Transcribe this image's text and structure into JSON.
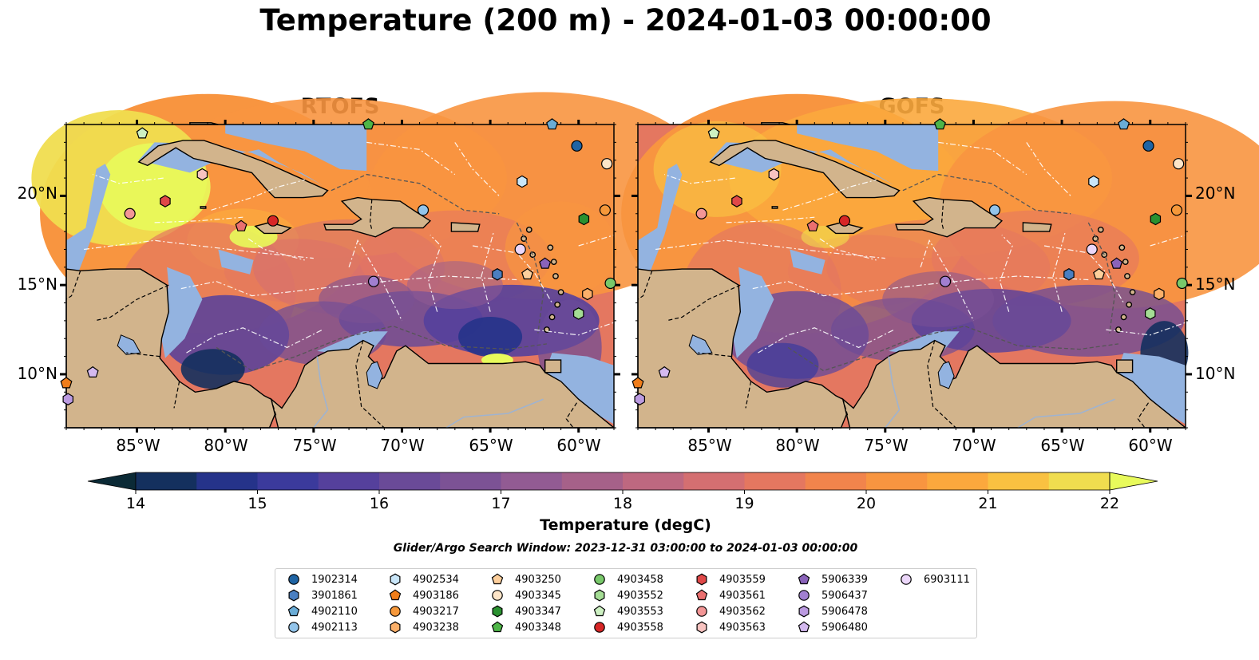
{
  "title": "Temperature (200 m) - 2024-01-03 00:00:00",
  "panels": [
    {
      "title": "RTOFS",
      "model": "rtofs"
    },
    {
      "title": "GOFS",
      "model": "gofs"
    }
  ],
  "axes": {
    "x_ticks": [
      "85°W",
      "80°W",
      "75°W",
      "70°W",
      "65°W",
      "60°W"
    ],
    "x_tick_values": [
      -85,
      -80,
      -75,
      -70,
      -65,
      -60
    ],
    "y_ticks": [
      "20°N",
      "15°N",
      "10°N"
    ],
    "y_tick_values": [
      20,
      15,
      10
    ],
    "lon_range": [
      -89,
      -58
    ],
    "lat_range": [
      7,
      24
    ]
  },
  "colorbar": {
    "label": "Temperature (degC)",
    "ticks": [
      "14",
      "15",
      "16",
      "17",
      "18",
      "19",
      "20",
      "21",
      "22"
    ],
    "tick_values": [
      14,
      15,
      16,
      17,
      18,
      19,
      20,
      21,
      22
    ],
    "range": [
      14,
      22
    ],
    "step": 0.5,
    "colormap": "thermal",
    "extend": "both",
    "colors": [
      "#0b2a36",
      "#14305e",
      "#25338a",
      "#3b3a9c",
      "#55409c",
      "#6a4a98",
      "#7c5295",
      "#925b93",
      "#a66189",
      "#be6880",
      "#d46f71",
      "#e47760",
      "#f1844c",
      "#f89540",
      "#fba83d",
      "#f9c141",
      "#f0dd4f",
      "#e8fa5b"
    ]
  },
  "search_window": "Glider/Argo Search Window: 2023-12-31 03:00:00 to 2024-01-03 00:00:00",
  "colors": {
    "land": "#d2b48c",
    "shelf": "#93b3e0",
    "contour_line": "#555555",
    "eez_line": "#ffffff"
  },
  "legend": [
    {
      "id": "1902314",
      "marker": "circle",
      "color": "#1f64a4"
    },
    {
      "id": "3901861",
      "marker": "hexagon",
      "color": "#4a7fc1"
    },
    {
      "id": "4902110",
      "marker": "pentagon",
      "color": "#6aacd6"
    },
    {
      "id": "4902113",
      "marker": "circle",
      "color": "#93c4ea"
    },
    {
      "id": "4902534",
      "marker": "hexagon",
      "color": "#c9e6f9"
    },
    {
      "id": "4903186",
      "marker": "pentagon",
      "color": "#f07d1a"
    },
    {
      "id": "4903217",
      "marker": "circle",
      "color": "#f6983a"
    },
    {
      "id": "4903238",
      "marker": "hexagon",
      "color": "#fbb06a"
    },
    {
      "id": "4903250",
      "marker": "pentagon",
      "color": "#fdcf9c"
    },
    {
      "id": "4903345",
      "marker": "circle",
      "color": "#fde5c8"
    },
    {
      "id": "4903347",
      "marker": "hexagon",
      "color": "#2a9130"
    },
    {
      "id": "4903348",
      "marker": "pentagon",
      "color": "#4eb548"
    },
    {
      "id": "4903458",
      "marker": "circle",
      "color": "#78c86a"
    },
    {
      "id": "4903552",
      "marker": "hexagon",
      "color": "#a4dc94"
    },
    {
      "id": "4903553",
      "marker": "pentagon",
      "color": "#cdf0c2"
    },
    {
      "id": "4903558",
      "marker": "circle",
      "color": "#d72626"
    },
    {
      "id": "4903559",
      "marker": "hexagon",
      "color": "#e04848"
    },
    {
      "id": "4903561",
      "marker": "pentagon",
      "color": "#ea6f6f"
    },
    {
      "id": "4903562",
      "marker": "circle",
      "color": "#f39696"
    },
    {
      "id": "4903563",
      "marker": "hexagon",
      "color": "#f8c3c0"
    },
    {
      "id": "5906339",
      "marker": "pentagon",
      "color": "#8a63ba"
    },
    {
      "id": "5906437",
      "marker": "circle",
      "color": "#a17fd0"
    },
    {
      "id": "5906478",
      "marker": "hexagon",
      "color": "#bb9ae0"
    },
    {
      "id": "5906480",
      "marker": "pentagon",
      "color": "#d4b9ef"
    },
    {
      "id": "6903111",
      "marker": "circle",
      "color": "#ecd7fa"
    }
  ],
  "floats": [
    {
      "id": "1902314",
      "lon": -60.1,
      "lat": 22.8
    },
    {
      "id": "3901861",
      "lon": -64.6,
      "lat": 15.6
    },
    {
      "id": "4902110",
      "lon": -61.5,
      "lat": 24.0
    },
    {
      "id": "4902113",
      "lon": -68.8,
      "lat": 19.2
    },
    {
      "id": "4902534",
      "lon": -63.2,
      "lat": 20.8
    },
    {
      "id": "4903186",
      "lon": -89.0,
      "lat": 9.5
    },
    {
      "id": "4903217",
      "lon": -58.5,
      "lat": 19.2
    },
    {
      "id": "4903238",
      "lon": -59.5,
      "lat": 14.5
    },
    {
      "id": "4903250",
      "lon": -62.9,
      "lat": 15.6
    },
    {
      "id": "4903345",
      "lon": -58.4,
      "lat": 21.8
    },
    {
      "id": "4903347",
      "lon": -59.7,
      "lat": 18.7
    },
    {
      "id": "4903348",
      "lon": -71.9,
      "lat": 24.0
    },
    {
      "id": "4903458",
      "lon": -58.2,
      "lat": 15.1
    },
    {
      "id": "4903552",
      "lon": -60.0,
      "lat": 13.4
    },
    {
      "id": "4903553",
      "lon": -84.7,
      "lat": 23.5
    },
    {
      "id": "4903558",
      "lon": -77.3,
      "lat": 18.6
    },
    {
      "id": "4903559",
      "lon": -83.4,
      "lat": 19.7
    },
    {
      "id": "4903561",
      "lon": -79.1,
      "lat": 18.3
    },
    {
      "id": "4903562",
      "lon": -85.4,
      "lat": 19.0
    },
    {
      "id": "4903563",
      "lon": -81.3,
      "lat": 21.2
    },
    {
      "id": "5906339",
      "lon": -61.9,
      "lat": 16.2
    },
    {
      "id": "5906437",
      "lon": -71.6,
      "lat": 15.2
    },
    {
      "id": "5906478",
      "lon": -88.9,
      "lat": 8.6
    },
    {
      "id": "5906480",
      "lon": -87.5,
      "lat": 10.1
    },
    {
      "id": "6903111",
      "lon": -63.3,
      "lat": 17.0
    }
  ]
}
